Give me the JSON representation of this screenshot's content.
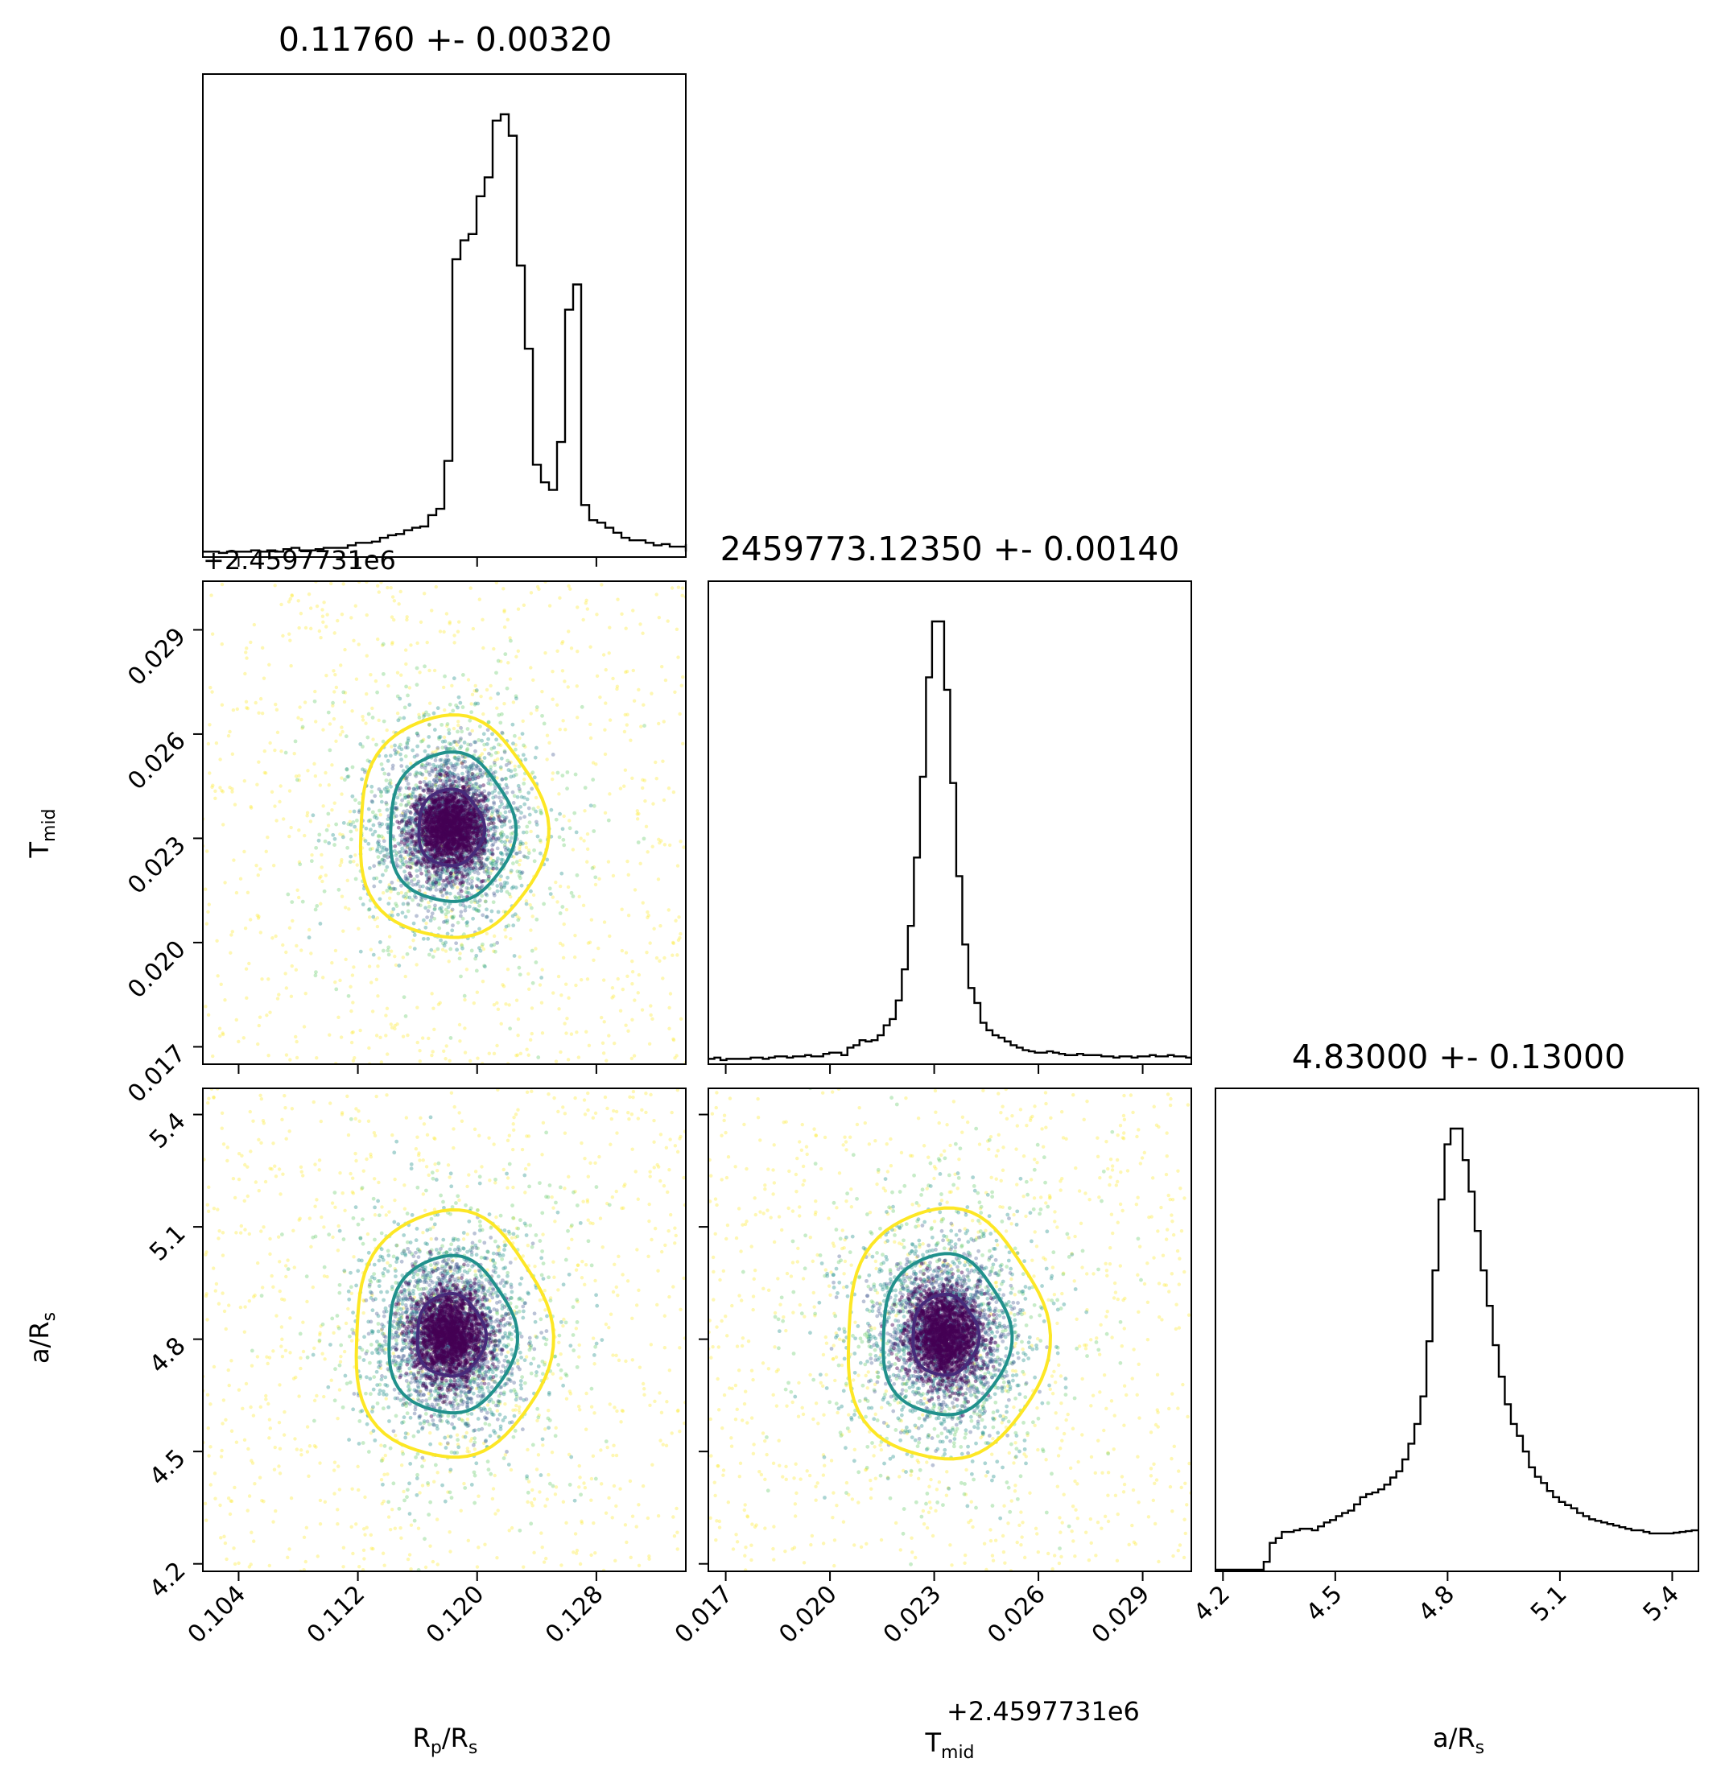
{
  "chart_data": {
    "type": "scatter",
    "plot_kind": "corner",
    "parameters": [
      {
        "key": "rp",
        "label_main": "R",
        "label_sub": "p",
        "label_rest": "/R",
        "label_sub2": "s"
      },
      {
        "key": "tmid",
        "label_main": "T",
        "label_sub": "mid",
        "label_rest": "",
        "label_sub2": ""
      },
      {
        "key": "ars",
        "label_main": "a/R",
        "label_sub": "s",
        "label_rest": "",
        "label_sub2": ""
      }
    ],
    "titles": [
      "0.11760 +- 0.00320",
      "2459773.12350 +- 0.00140",
      "4.83000 +- 0.13000"
    ],
    "offset_text": "+2.4597731e6",
    "ranges": {
      "rp": [
        0.1016,
        0.134
      ],
      "tmid": [
        0.0165,
        0.0304
      ],
      "ars": [
        4.18,
        5.47
      ]
    },
    "ticks": {
      "rp": {
        "values": [
          0.104,
          0.112,
          0.12,
          0.128
        ],
        "labels": [
          "0.104",
          "0.112",
          "0.120",
          "0.128"
        ]
      },
      "tmid": {
        "values": [
          0.017,
          0.02,
          0.023,
          0.026,
          0.029
        ],
        "labels": [
          "0.017",
          "0.020",
          "0.023",
          "0.026",
          "0.029"
        ]
      },
      "ars": {
        "values": [
          4.2,
          4.5,
          4.8,
          5.1,
          5.4
        ],
        "labels": [
          "4.2",
          "4.5",
          "4.8",
          "5.1",
          "5.4"
        ]
      }
    },
    "hist_rp": {
      "x_start": 0.1016,
      "bin_width": 0.00054,
      "counts": [
        3,
        3,
        2,
        3,
        3,
        3,
        4,
        3,
        4,
        3,
        5,
        6,
        4,
        4,
        5,
        6,
        6,
        6,
        8,
        10,
        10,
        11,
        14,
        16,
        17,
        20,
        22,
        23,
        32,
        37,
        75,
        235,
        250,
        255,
        285,
        300,
        345,
        350,
        333,
        230,
        164,
        72,
        58,
        52,
        90,
        195,
        215,
        40,
        28,
        26,
        22,
        18,
        14,
        12,
        12,
        10,
        8,
        9,
        7,
        7,
        6,
        5,
        5,
        5,
        4,
        5,
        4,
        4,
        3,
        3,
        3,
        3,
        8,
        9,
        8,
        9,
        9,
        9,
        9,
        9,
        9,
        9
      ]
    },
    "hist_tmid": {
      "x_start": 0.0165,
      "bin_width": 0.000174,
      "counts": [
        3,
        4,
        2,
        3,
        3,
        3,
        3,
        4,
        4,
        3,
        4,
        5,
        5,
        4,
        5,
        5,
        6,
        5,
        5,
        7,
        8,
        8,
        6,
        12,
        14,
        18,
        17,
        18,
        22,
        30,
        35,
        50,
        75,
        110,
        165,
        230,
        310,
        355,
        355,
        300,
        225,
        150,
        95,
        60,
        48,
        32,
        26,
        22,
        20,
        17,
        14,
        12,
        10,
        9,
        8,
        8,
        9,
        8,
        7,
        6,
        6,
        7,
        6,
        6,
        6,
        5,
        5,
        4,
        5,
        5,
        4,
        5,
        5,
        6,
        5,
        5,
        6,
        5,
        5,
        4
      ]
    },
    "hist_ars": {
      "x_start": 4.18,
      "bin_width": 0.0161,
      "counts": [
        0,
        0,
        0,
        0,
        0,
        0,
        0,
        0,
        10,
        34,
        40,
        48,
        48,
        50,
        52,
        52,
        50,
        55,
        60,
        63,
        68,
        72,
        75,
        83,
        92,
        96,
        98,
        102,
        108,
        117,
        125,
        140,
        160,
        185,
        220,
        290,
        380,
        470,
        540,
        560,
        560,
        520,
        480,
        430,
        380,
        335,
        285,
        245,
        210,
        185,
        170,
        150,
        130,
        118,
        110,
        100,
        92,
        86,
        82,
        78,
        72,
        68,
        64,
        62,
        60,
        58,
        56,
        54,
        52,
        50,
        50,
        48,
        46,
        46,
        46,
        46,
        47,
        48,
        49,
        50,
        50
      ]
    },
    "center": {
      "rp": 0.1182,
      "tmid": 0.0233,
      "ars": 4.81
    },
    "contours": {
      "levels": [
        "inner",
        "middle",
        "outer"
      ],
      "colors": [
        "#472a7a",
        "#21918c",
        "#fde725"
      ],
      "rp_tmid": {
        "inner_radius": [
          0.0022,
          0.0011
        ],
        "middle_radius": [
          0.0042,
          0.00215
        ],
        "outer_radius": [
          0.0063,
          0.0032
        ]
      },
      "rp_ars": {
        "inner_radius": [
          0.0023,
          0.11
        ],
        "middle_radius": [
          0.0043,
          0.21
        ],
        "outer_radius": [
          0.0066,
          0.33
        ]
      },
      "tmid_ars": {
        "inner_radius": [
          0.00095,
          0.108
        ],
        "middle_radius": [
          0.00185,
          0.215
        ],
        "outer_radius": [
          0.0029,
          0.335
        ]
      }
    },
    "scatter_colors": [
      "#440154",
      "#3b528b",
      "#21918c",
      "#5ec962",
      "#fde725"
    ]
  }
}
